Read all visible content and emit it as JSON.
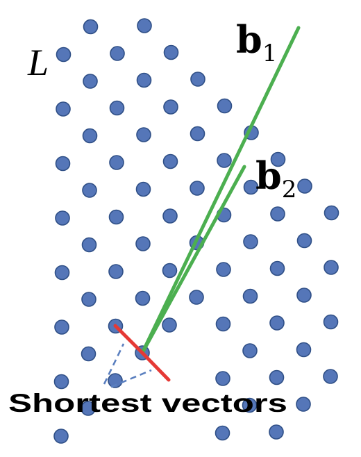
{
  "diagram": {
    "lattice_label": "L",
    "basis": [
      {
        "name": "b",
        "subscript": "1"
      },
      {
        "name": "b",
        "subscript": "2"
      }
    ],
    "caption": "Shortest vectors",
    "colors": {
      "lattice_point": "#5576b8",
      "basis_vector": "#4caf50",
      "shortest_vector": "#e53935",
      "pointer": "#5a7fbf"
    }
  }
}
